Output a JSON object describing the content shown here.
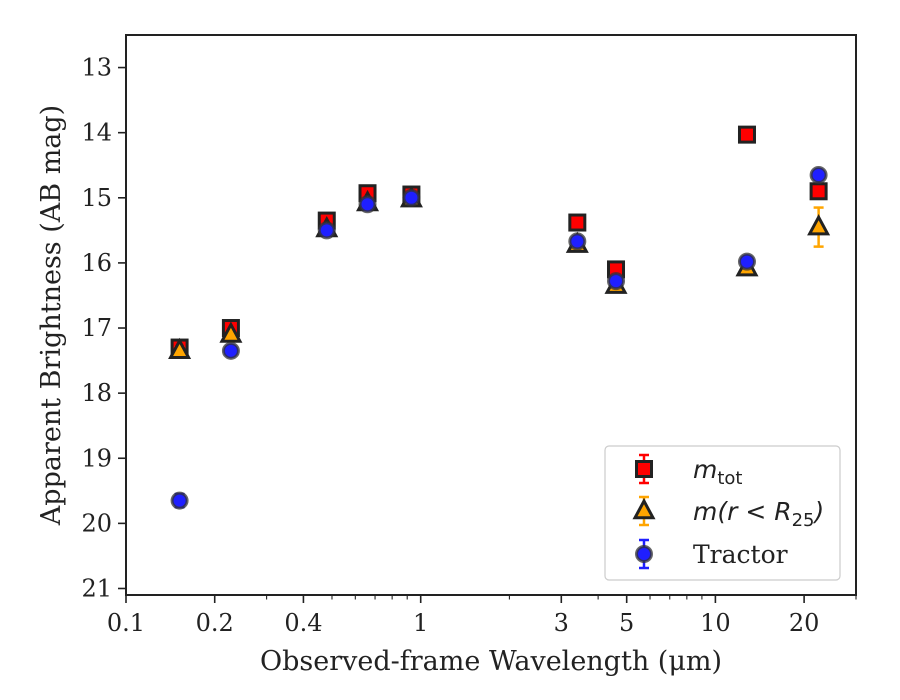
{
  "chart_data": {
    "type": "scatter",
    "xlabel": "Observed-frame Wavelength (μm)",
    "ylabel": "Apparent Brightness (AB mag)",
    "xscale": "log",
    "xlim": [
      0.1,
      30
    ],
    "ylim": [
      21.1,
      12.5
    ],
    "y_inverted": true,
    "grid": false,
    "x_ticks": [
      0.1,
      0.2,
      0.4,
      1,
      3,
      5,
      10,
      20
    ],
    "x_tick_labels": [
      "0.1",
      "0.2",
      "0.4",
      "1",
      "3",
      "5",
      "10",
      "20"
    ],
    "y_ticks": [
      13,
      14,
      15,
      16,
      17,
      18,
      19,
      20,
      21
    ],
    "y_tick_labels": [
      "13",
      "14",
      "15",
      "16",
      "17",
      "18",
      "19",
      "20",
      "21"
    ],
    "legend_position": "lower-right",
    "legend": [
      {
        "label": "m",
        "sub": "tot",
        "math": true
      },
      {
        "label": "m(r < R",
        "sub": "25",
        "suffix": ")",
        "math": true
      },
      {
        "label": "Tractor",
        "math": false
      }
    ],
    "series": [
      {
        "name": "m_tot",
        "marker": "square",
        "color": "#ff0000",
        "edge": "#222222",
        "errcolor": "#ff0000",
        "points": [
          {
            "x": 0.152,
            "y": 17.3,
            "err": 0.05
          },
          {
            "x": 0.227,
            "y": 17.0,
            "err": 0.04
          },
          {
            "x": 0.48,
            "y": 15.35,
            "err": 0.03
          },
          {
            "x": 0.66,
            "y": 14.93,
            "err": 0.03
          },
          {
            "x": 0.93,
            "y": 14.95,
            "err": 0.03
          },
          {
            "x": 3.4,
            "y": 15.38,
            "err": 0.03
          },
          {
            "x": 4.6,
            "y": 16.1,
            "err": 0.04
          },
          {
            "x": 12.8,
            "y": 14.03,
            "err": 0.03
          },
          {
            "x": 22.4,
            "y": 14.9,
            "err": 0.05
          }
        ]
      },
      {
        "name": "m(r<R25)",
        "marker": "triangle",
        "color": "#ffa500",
        "edge": "#222222",
        "errcolor": "#ffa500",
        "points": [
          {
            "x": 0.152,
            "y": 17.35,
            "err": 0.05
          },
          {
            "x": 0.227,
            "y": 17.1,
            "err": 0.04
          },
          {
            "x": 0.48,
            "y": 15.48,
            "err": 0.03
          },
          {
            "x": 0.66,
            "y": 15.08,
            "err": 0.03
          },
          {
            "x": 0.93,
            "y": 15.02,
            "err": 0.03
          },
          {
            "x": 3.4,
            "y": 15.72,
            "err": 0.03
          },
          {
            "x": 4.6,
            "y": 16.35,
            "err": 0.04
          },
          {
            "x": 12.8,
            "y": 16.08,
            "err": 0.04
          },
          {
            "x": 22.4,
            "y": 15.45,
            "err": 0.3
          }
        ]
      },
      {
        "name": "Tractor",
        "marker": "circle",
        "color": "#1f1fff",
        "edge": "#333333",
        "errcolor": "#1f1fff",
        "points": [
          {
            "x": 0.152,
            "y": 19.65,
            "err": 0.1
          },
          {
            "x": 0.227,
            "y": 17.35,
            "err": 0.04
          },
          {
            "x": 0.48,
            "y": 15.5,
            "err": 0.03
          },
          {
            "x": 0.66,
            "y": 15.1,
            "err": 0.03
          },
          {
            "x": 0.93,
            "y": 15.0,
            "err": 0.03
          },
          {
            "x": 3.4,
            "y": 15.67,
            "err": 0.03
          },
          {
            "x": 4.6,
            "y": 16.28,
            "err": 0.04
          },
          {
            "x": 12.8,
            "y": 15.98,
            "err": 0.04
          },
          {
            "x": 22.4,
            "y": 14.65,
            "err": 0.06
          }
        ]
      }
    ]
  }
}
